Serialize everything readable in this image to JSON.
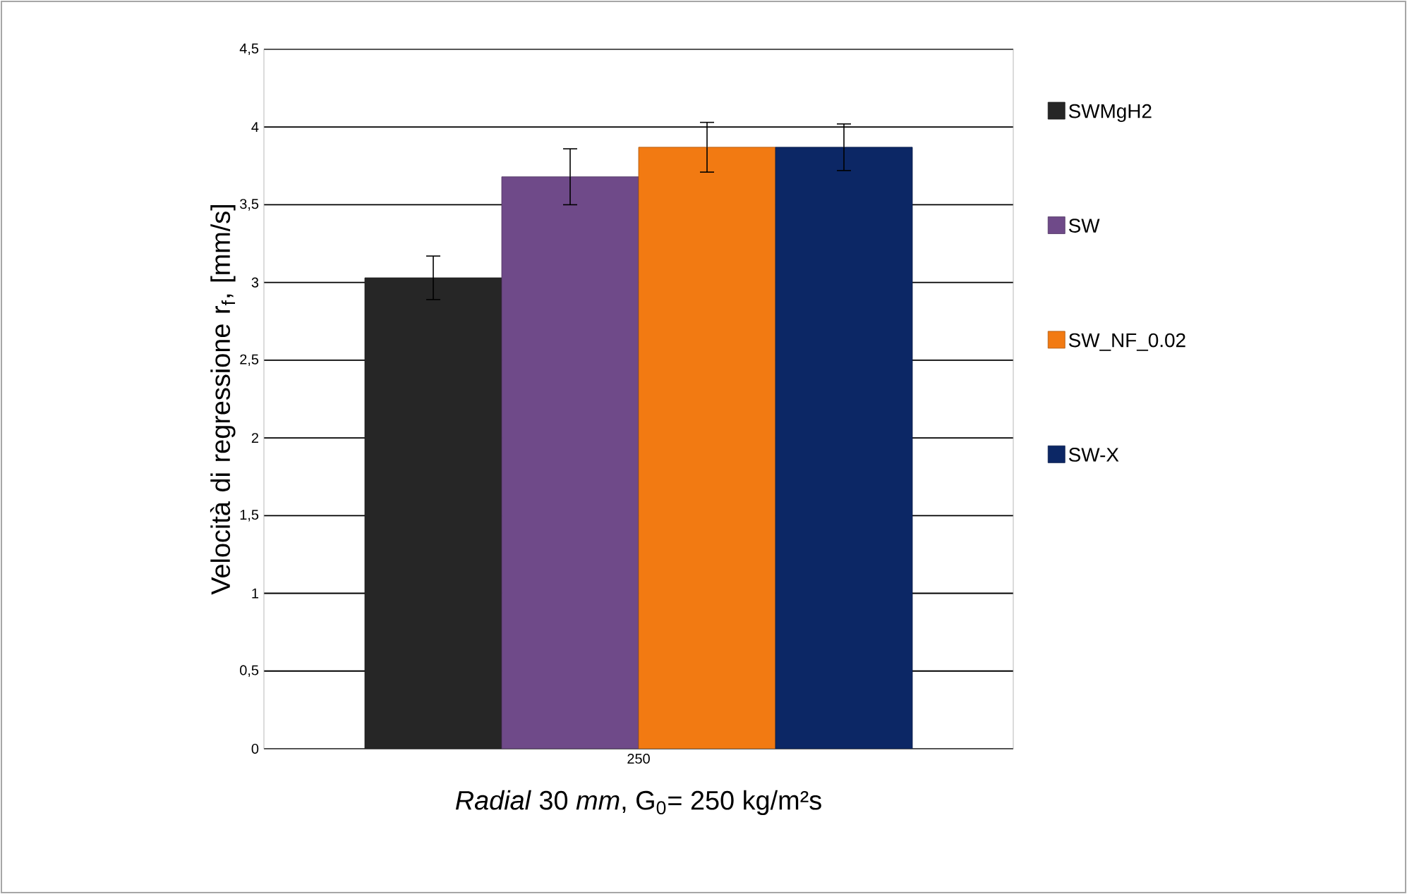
{
  "chart_data": {
    "type": "bar",
    "xlabel": "*Radial* 30 *mm*, G$_{0}$= 250  kg/m²s",
    "ylabel": "Velocità di regressione r$_{f}$, [mm/s]",
    "categories": [
      "250"
    ],
    "series": [
      {
        "name": "SWMgH2",
        "color": "#262626",
        "values": [
          3.03
        ],
        "errors": [
          0.14
        ]
      },
      {
        "name": "SW",
        "color": "#6f4a89",
        "values": [
          3.68
        ],
        "errors": [
          0.18
        ]
      },
      {
        "name": "SW_NF_0.02",
        "color": "#f27a12",
        "values": [
          3.87
        ],
        "errors": [
          0.16
        ]
      },
      {
        "name": "SW-X",
        "color": "#0c2765",
        "values": [
          3.87
        ],
        "errors": [
          0.15
        ]
      }
    ],
    "ylim": [
      0,
      4.5
    ],
    "yticks": [
      0,
      {
        "value": 0.5,
        "label": "0,5"
      },
      1,
      {
        "value": 1.5,
        "label": "1,5"
      },
      2,
      {
        "value": 2.5,
        "label": "2,5"
      },
      3,
      {
        "value": 3.5,
        "label": "3,5"
      },
      4,
      {
        "value": 4.5,
        "label": "4,5"
      }
    ],
    "grid": "y",
    "legend": "right"
  }
}
